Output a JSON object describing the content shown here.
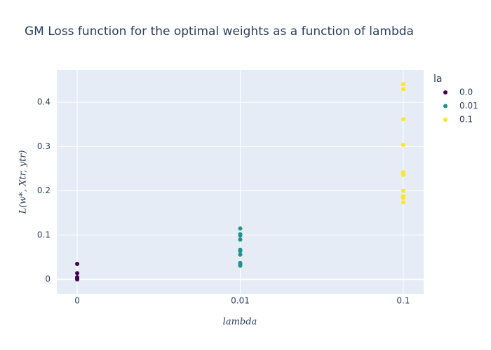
{
  "chart_data": {
    "type": "scatter",
    "title": "GM Loss function for the optimal weights as a function of lambda",
    "x_label": "lambda",
    "y_label": "L(w*, Xtr, ytr)",
    "legend_title": "la",
    "categories": [
      "0",
      "0.01",
      "0.1"
    ],
    "series": [
      {
        "name": "0.0",
        "color": "#440154",
        "x": [
          "0",
          "0",
          "0",
          "0",
          "0",
          "0"
        ],
        "values": [
          0.035,
          0.014,
          0.005,
          0.002,
          0.001,
          0.0
        ]
      },
      {
        "name": "0.01",
        "color": "#21918c",
        "x": [
          "0.01",
          "0.01",
          "0.01",
          "0.01",
          "0.01",
          "0.01",
          "0.01",
          "0.01",
          "0.01",
          "0.01"
        ],
        "values": [
          0.115,
          0.102,
          0.099,
          0.09,
          0.067,
          0.064,
          0.056,
          0.037,
          0.034,
          0.031
        ]
      },
      {
        "name": "0.1",
        "color": "#fde725",
        "x": [
          "0.1",
          "0.1",
          "0.1",
          "0.1",
          "0.1",
          "0.1",
          "0.1",
          "0.1",
          "0.1",
          "0.1"
        ],
        "values": [
          0.441,
          0.43,
          0.362,
          0.304,
          0.242,
          0.236,
          0.2,
          0.188,
          0.184,
          0.174
        ]
      }
    ],
    "ylim": [
      -0.033,
      0.473
    ],
    "yticks": [
      0,
      0.1,
      0.2,
      0.3,
      0.4
    ],
    "grid": true
  }
}
